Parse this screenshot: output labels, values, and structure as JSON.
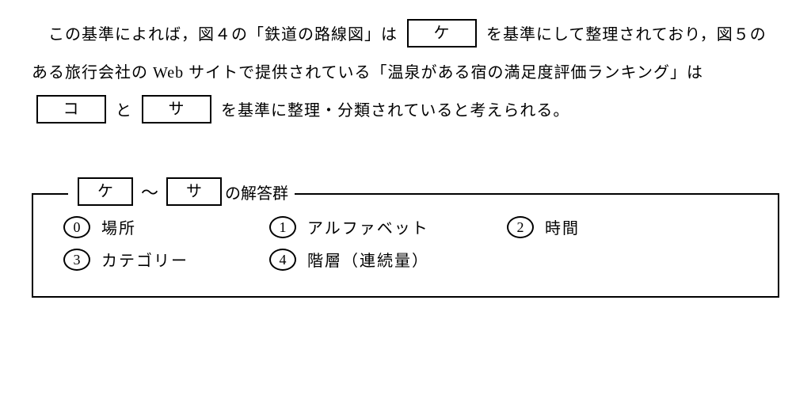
{
  "paragraph": {
    "part1": "　この基準によれば，図４の「鉄道の路線図」は",
    "blank1": "ケ",
    "part2": "を基準にして整理されており，図５のある旅行会社の Web サイトで提供されている「温泉がある宿の満足度評価ランキング」は",
    "blank2": "コ",
    "and": "と",
    "blank3": "サ",
    "part3": "を基準に整理・分類されていると考えられる。"
  },
  "legend": {
    "from": "ケ",
    "tilde": "～",
    "to": "サ",
    "suffix": "の解答群"
  },
  "choices": [
    {
      "num": "0",
      "label": "場所"
    },
    {
      "num": "1",
      "label": "アルファベット"
    },
    {
      "num": "2",
      "label": "時間"
    },
    {
      "num": "3",
      "label": "カテゴリー"
    },
    {
      "num": "4",
      "label": "階層（連続量）"
    }
  ]
}
